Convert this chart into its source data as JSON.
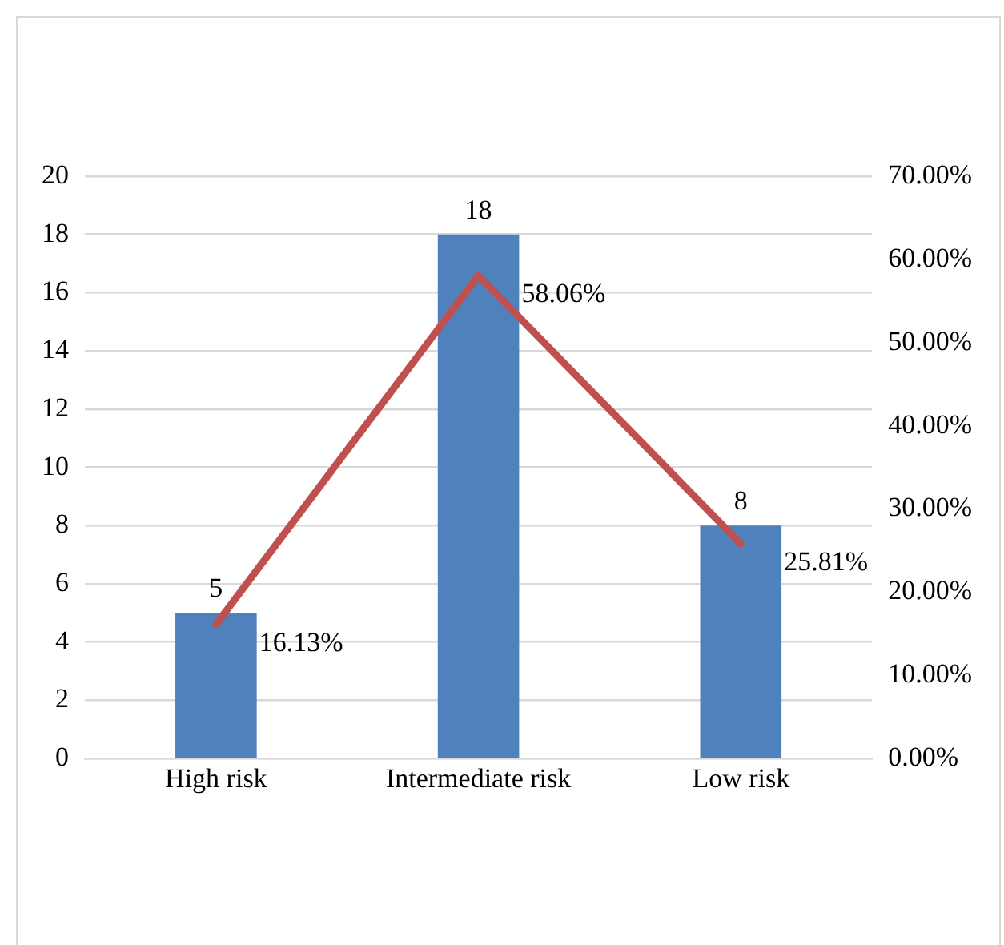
{
  "chart_data": {
    "type": "bar",
    "categories": [
      "High risk",
      "Intermediate risk",
      "Low risk"
    ],
    "series": [
      {
        "color": "#4f81bd",
        "values": [
          5,
          18,
          8
        ],
        "value_labels": [
          "5",
          "18",
          "8"
        ]
      },
      {
        "type": "line",
        "axis": "y2",
        "color": "#c0504d",
        "values": [
          16.13,
          58.06,
          25.81
        ],
        "value_labels": [
          "16.13%",
          "58.06%",
          "25.81%"
        ]
      }
    ],
    "ylim": [
      0,
      20
    ],
    "yticks": [
      0,
      2,
      4,
      6,
      8,
      10,
      12,
      14,
      16,
      18,
      20
    ],
    "y2lim": [
      0,
      70
    ],
    "y2ticks": [
      {
        "value": 0,
        "label": "0.00%"
      },
      {
        "value": 10,
        "label": "10.00%"
      },
      {
        "value": 20,
        "label": "20.00%"
      },
      {
        "value": 30,
        "label": "30.00%"
      },
      {
        "value": 40,
        "label": "40.00%"
      },
      {
        "value": 50,
        "label": "50.00%"
      },
      {
        "value": 60,
        "label": "60.00%"
      },
      {
        "value": 70,
        "label": "70.00%"
      }
    ],
    "grid": "y",
    "legend": false,
    "marker": "none"
  }
}
